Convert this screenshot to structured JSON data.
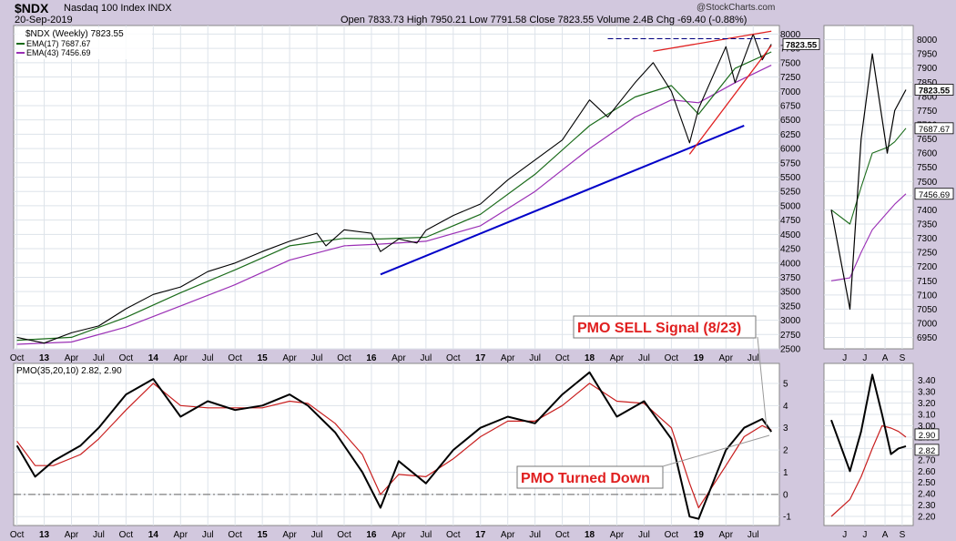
{
  "header": {
    "symbol": "$NDX",
    "name": "Nasdaq 100 Index  INDX",
    "date": "20-Sep-2019",
    "watermark": "@StockCharts.com",
    "ohlc": "Open 7833.73   High 7950.21   Low 7791.58   Close 7823.55   Volume 2.4B   Chg -69.40 (-0.88%)"
  },
  "chart_data": [
    {
      "type": "line",
      "panel": "price-weekly",
      "legend": [
        "$NDX (Weekly) 7823.55",
        "EMA(17) 7687.67",
        "EMA(43) 7456.69"
      ],
      "series": [
        {
          "name": "$NDX (Weekly)",
          "color": "#000000",
          "x": [
            "2012-10",
            "2013-01",
            "2013-04",
            "2013-07",
            "2013-10",
            "2014-01",
            "2014-04",
            "2014-07",
            "2014-10",
            "2015-01",
            "2015-04",
            "2015-07",
            "2015-08",
            "2015-10",
            "2016-01",
            "2016-02",
            "2016-04",
            "2016-06",
            "2016-07",
            "2016-10",
            "2017-01",
            "2017-04",
            "2017-07",
            "2017-10",
            "2018-01",
            "2018-03",
            "2018-06",
            "2018-08",
            "2018-10",
            "2018-12",
            "2019-01",
            "2019-04",
            "2019-05",
            "2019-07",
            "2019-08",
            "2019-09"
          ],
          "y": [
            2700,
            2600,
            2780,
            2900,
            3200,
            3450,
            3580,
            3850,
            4000,
            4200,
            4380,
            4520,
            4300,
            4580,
            4520,
            4200,
            4420,
            4350,
            4570,
            4830,
            5030,
            5450,
            5800,
            6150,
            6850,
            6550,
            7150,
            7500,
            7000,
            6100,
            6700,
            7780,
            7150,
            8000,
            7550,
            7823.55
          ]
        },
        {
          "name": "EMA(17)",
          "color": "#1a6b1a",
          "x": [
            "2012-10",
            "2013-04",
            "2013-10",
            "2014-04",
            "2014-10",
            "2015-04",
            "2015-10",
            "2016-02",
            "2016-07",
            "2017-01",
            "2017-07",
            "2018-01",
            "2018-06",
            "2018-10",
            "2019-01",
            "2019-05",
            "2019-09"
          ],
          "y": [
            2650,
            2700,
            3050,
            3480,
            3880,
            4300,
            4430,
            4420,
            4450,
            4850,
            5550,
            6400,
            6900,
            7100,
            6600,
            7400,
            7687.67
          ]
        },
        {
          "name": "EMA(43)",
          "color": "#9a2fb5",
          "x": [
            "2012-10",
            "2013-04",
            "2013-10",
            "2014-04",
            "2014-10",
            "2015-04",
            "2015-10",
            "2016-02",
            "2016-07",
            "2017-01",
            "2017-07",
            "2018-01",
            "2018-06",
            "2018-10",
            "2019-01",
            "2019-05",
            "2019-09"
          ],
          "y": [
            2580,
            2620,
            2880,
            3250,
            3620,
            4050,
            4300,
            4330,
            4380,
            4650,
            5250,
            6000,
            6550,
            6850,
            6800,
            7150,
            7456.69
          ]
        }
      ],
      "annotations": [
        {
          "type": "trendline",
          "color": "#0000c8",
          "x": [
            "2016-02",
            "2019-06"
          ],
          "y": [
            3800,
            6400
          ]
        },
        {
          "type": "trendline",
          "color": "#e02020",
          "x": [
            "2018-12",
            "2019-09"
          ],
          "y": [
            5900,
            7800
          ]
        },
        {
          "type": "trendline",
          "color": "#e02020",
          "x": [
            "2018-08",
            "2019-09"
          ],
          "y": [
            7700,
            8050
          ]
        },
        {
          "type": "hline-dashed",
          "color": "#000080",
          "x": [
            "2018-03",
            "2019-09"
          ],
          "y": [
            7920,
            7920
          ]
        }
      ],
      "yticks": [
        2500,
        2750,
        3000,
        3250,
        3500,
        3750,
        4000,
        4250,
        4500,
        4750,
        5000,
        5250,
        5500,
        5750,
        6000,
        6250,
        6500,
        6750,
        7000,
        7250,
        7500,
        7750,
        8000
      ],
      "xticks": [
        "Oct",
        "13",
        "Apr",
        "Jul",
        "Oct",
        "14",
        "Apr",
        "Jul",
        "Oct",
        "15",
        "Apr",
        "Jul",
        "Oct",
        "16",
        "Apr",
        "Jul",
        "Oct",
        "17",
        "Apr",
        "Jul",
        "Oct",
        "18",
        "Apr",
        "Jul",
        "Oct",
        "19",
        "Apr",
        "Jul"
      ],
      "last_value_label": "7823.55"
    },
    {
      "type": "line",
      "panel": "price-daily-inset",
      "series": [
        {
          "name": "price",
          "color": "#000000",
          "x": [
            "May",
            "Jun",
            "Jun-mid",
            "Jul",
            "Aug",
            "Aug-mid",
            "Sep"
          ],
          "y": [
            7400,
            7050,
            7650,
            7950,
            7600,
            7750,
            7823.55
          ]
        },
        {
          "name": "EMA(17)",
          "color": "#1a6b1a",
          "x": [
            "May",
            "Jun",
            "Jun-mid",
            "Jul",
            "Aug",
            "Aug-mid",
            "Sep"
          ],
          "y": [
            7400,
            7350,
            7480,
            7600,
            7620,
            7640,
            7687.67
          ]
        },
        {
          "name": "EMA(43)",
          "color": "#9a2fb5",
          "x": [
            "May",
            "Jun",
            "Jun-mid",
            "Jul",
            "Aug",
            "Aug-mid",
            "Sep"
          ],
          "y": [
            7150,
            7160,
            7250,
            7330,
            7390,
            7420,
            7456.69
          ]
        }
      ],
      "yticks": [
        6950,
        7000,
        7050,
        7100,
        7150,
        7200,
        7250,
        7300,
        7350,
        7400,
        7450,
        7500,
        7550,
        7600,
        7650,
        7700,
        7750,
        7800,
        7850,
        7900,
        7950,
        8000
      ],
      "xticks": [
        "J",
        "J",
        "A",
        "S"
      ],
      "value_labels": [
        "7823.55",
        "7687.67",
        "7456.69"
      ]
    },
    {
      "type": "line",
      "panel": "pmo-weekly",
      "legend": "PMO(35,20,10) 2.82, 2.90",
      "series": [
        {
          "name": "PMO",
          "color": "#000000",
          "x": [
            "2012-10",
            "2012-12",
            "2013-02",
            "2013-05",
            "2013-07",
            "2013-10",
            "2014-01",
            "2014-04",
            "2014-07",
            "2014-10",
            "2015-01",
            "2015-04",
            "2015-06",
            "2015-09",
            "2015-12",
            "2016-02",
            "2016-04",
            "2016-07",
            "2016-10",
            "2017-01",
            "2017-04",
            "2017-07",
            "2017-10",
            "2018-01",
            "2018-04",
            "2018-07",
            "2018-10",
            "2018-12",
            "2019-01",
            "2019-04",
            "2019-06",
            "2019-08",
            "2019-09"
          ],
          "y": [
            2.2,
            0.8,
            1.5,
            2.2,
            3.0,
            4.5,
            5.2,
            3.5,
            4.2,
            3.8,
            4.0,
            4.5,
            4.0,
            2.8,
            1.0,
            -0.6,
            1.5,
            0.5,
            2.0,
            3.0,
            3.5,
            3.2,
            4.5,
            5.5,
            3.5,
            4.2,
            2.5,
            -1.0,
            -1.1,
            2.0,
            3.0,
            3.4,
            2.82
          ]
        },
        {
          "name": "Signal",
          "color": "#c81e1e",
          "x": [
            "2012-10",
            "2012-12",
            "2013-02",
            "2013-05",
            "2013-07",
            "2013-10",
            "2014-01",
            "2014-04",
            "2014-07",
            "2014-10",
            "2015-01",
            "2015-04",
            "2015-06",
            "2015-09",
            "2015-12",
            "2016-02",
            "2016-04",
            "2016-07",
            "2016-10",
            "2017-01",
            "2017-04",
            "2017-07",
            "2017-10",
            "2018-01",
            "2018-04",
            "2018-07",
            "2018-10",
            "2018-12",
            "2019-01",
            "2019-04",
            "2019-06",
            "2019-08",
            "2019-09"
          ],
          "y": [
            2.4,
            1.3,
            1.3,
            1.8,
            2.5,
            3.8,
            5.0,
            4.0,
            3.9,
            3.9,
            3.9,
            4.2,
            4.1,
            3.2,
            1.8,
            0.0,
            0.9,
            0.8,
            1.6,
            2.6,
            3.3,
            3.3,
            4.0,
            5.0,
            4.2,
            4.1,
            3.0,
            0.5,
            -0.6,
            1.3,
            2.6,
            3.1,
            2.9
          ]
        }
      ],
      "yticks": [
        -1,
        0,
        1,
        2,
        3,
        4,
        5
      ],
      "xticks": [
        "Oct",
        "13",
        "Apr",
        "Jul",
        "Oct",
        "14",
        "Apr",
        "Jul",
        "Oct",
        "15",
        "Apr",
        "Jul",
        "Oct",
        "16",
        "Apr",
        "Jul",
        "Oct",
        "17",
        "Apr",
        "Jul",
        "Oct",
        "18",
        "Apr",
        "Jul",
        "Oct",
        "19",
        "Apr",
        "Jul"
      ],
      "annotations": [
        "PMO SELL Signal (8/23)",
        "PMO Turned Down"
      ]
    },
    {
      "type": "line",
      "panel": "pmo-daily-inset",
      "series": [
        {
          "name": "PMO",
          "color": "#000000",
          "x": [
            "May",
            "Jun",
            "Jun-mid",
            "Jul",
            "Jul-mid",
            "Aug",
            "Aug-mid",
            "Sep"
          ],
          "y": [
            3.05,
            2.6,
            2.95,
            3.45,
            3.1,
            2.75,
            2.8,
            2.82
          ]
        },
        {
          "name": "Signal",
          "color": "#c81e1e",
          "x": [
            "May",
            "Jun",
            "Jun-mid",
            "Jul",
            "Jul-mid",
            "Aug",
            "Aug-mid",
            "Sep"
          ],
          "y": [
            2.2,
            2.35,
            2.55,
            2.8,
            3.0,
            2.98,
            2.95,
            2.9
          ]
        }
      ],
      "yticks": [
        2.2,
        2.3,
        2.4,
        2.5,
        2.6,
        2.7,
        2.8,
        2.9,
        3.0,
        3.1,
        3.2,
        3.3,
        3.4
      ],
      "xticks": [
        "J",
        "J",
        "A",
        "S"
      ],
      "value_labels": [
        "2.90",
        "2.82"
      ]
    }
  ]
}
